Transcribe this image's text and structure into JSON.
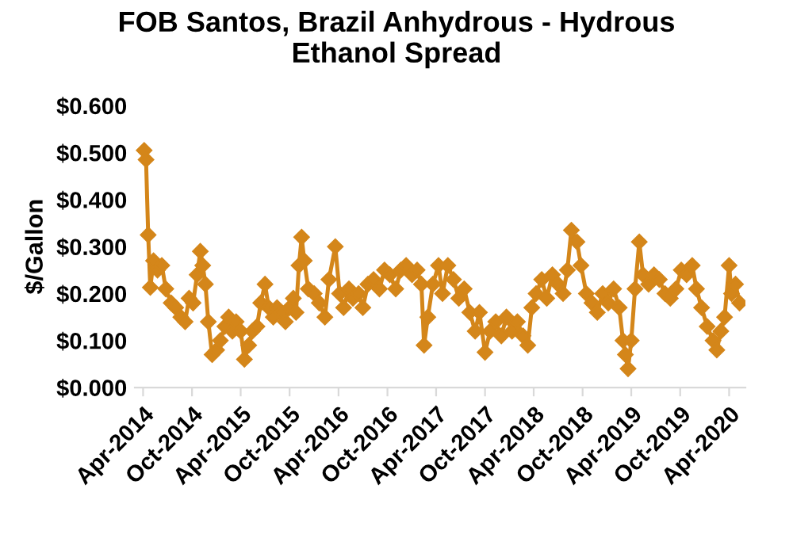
{
  "chart_data": {
    "type": "line",
    "title": "FOB Santos, Brazil Anhydrous - Hydrous\nEthanol Spread",
    "ylabel": "$/Gallon",
    "x": [
      "2014-04-05",
      "2014-04-12",
      "2014-04-20",
      "2014-04-28",
      "2014-05-10",
      "2014-05-25",
      "2014-06-10",
      "2014-06-25",
      "2014-07-15",
      "2014-08-01",
      "2014-08-20",
      "2014-09-05",
      "2014-09-20",
      "2014-10-05",
      "2014-10-20",
      "2014-11-01",
      "2014-11-10",
      "2014-11-20",
      "2014-12-01",
      "2014-12-15",
      "2015-01-01",
      "2015-01-15",
      "2015-02-01",
      "2015-02-15",
      "2015-03-01",
      "2015-03-15",
      "2015-04-01",
      "2015-04-15",
      "2015-05-01",
      "2015-05-15",
      "2015-06-01",
      "2015-06-15",
      "2015-07-01",
      "2015-07-15",
      "2015-08-01",
      "2015-08-15",
      "2015-09-01",
      "2015-09-15",
      "2015-10-01",
      "2015-10-15",
      "2015-10-25",
      "2015-11-05",
      "2015-11-15",
      "2015-11-25",
      "2015-12-10",
      "2016-01-01",
      "2016-01-20",
      "2016-02-10",
      "2016-02-25",
      "2016-03-20",
      "2016-04-05",
      "2016-04-20",
      "2016-05-10",
      "2016-05-25",
      "2016-06-15",
      "2016-07-01",
      "2016-07-20",
      "2016-08-10",
      "2016-09-01",
      "2016-09-20",
      "2016-10-10",
      "2016-11-01",
      "2016-11-20",
      "2016-12-10",
      "2017-01-01",
      "2017-01-20",
      "2017-02-05",
      "2017-02-15",
      "2017-03-01",
      "2017-03-20",
      "2017-04-10",
      "2017-04-25",
      "2017-05-15",
      "2017-06-05",
      "2017-06-25",
      "2017-07-15",
      "2017-08-05",
      "2017-08-25",
      "2017-09-10",
      "2017-10-01",
      "2017-10-20",
      "2017-11-10",
      "2017-12-01",
      "2017-12-20",
      "2018-01-10",
      "2018-01-30",
      "2018-02-20",
      "2018-03-10",
      "2018-03-25",
      "2018-04-10",
      "2018-05-01",
      "2018-05-20",
      "2018-06-10",
      "2018-07-01",
      "2018-07-20",
      "2018-08-05",
      "2018-08-20",
      "2018-09-10",
      "2018-09-25",
      "2018-10-15",
      "2018-11-05",
      "2018-11-25",
      "2018-12-15",
      "2019-01-05",
      "2019-01-25",
      "2019-02-15",
      "2019-03-01",
      "2019-03-10",
      "2019-03-20",
      "2019-04-01",
      "2019-04-15",
      "2019-05-01",
      "2019-05-15",
      "2019-06-05",
      "2019-06-25",
      "2019-07-15",
      "2019-08-05",
      "2019-08-25",
      "2019-09-15",
      "2019-10-05",
      "2019-10-25",
      "2019-11-15",
      "2019-12-01",
      "2019-12-20",
      "2020-01-10",
      "2020-02-01",
      "2020-02-15",
      "2020-03-01",
      "2020-03-15",
      "2020-04-01",
      "2020-04-10",
      "2020-04-25",
      "2020-05-10"
    ],
    "series": [
      {
        "color": "#d4861a",
        "values": [
          0.505,
          0.485,
          0.325,
          0.213,
          0.27,
          0.25,
          0.26,
          0.21,
          0.18,
          0.17,
          0.15,
          0.14,
          0.19,
          0.18,
          0.24,
          0.29,
          0.26,
          0.22,
          0.14,
          0.07,
          0.08,
          0.1,
          0.13,
          0.15,
          0.12,
          0.14,
          0.12,
          0.06,
          0.09,
          0.12,
          0.13,
          0.18,
          0.22,
          0.17,
          0.15,
          0.17,
          0.16,
          0.14,
          0.17,
          0.19,
          0.16,
          0.26,
          0.32,
          0.27,
          0.21,
          0.2,
          0.18,
          0.15,
          0.23,
          0.3,
          0.2,
          0.17,
          0.21,
          0.19,
          0.2,
          0.17,
          0.22,
          0.23,
          0.21,
          0.25,
          0.24,
          0.21,
          0.25,
          0.26,
          0.24,
          0.25,
          0.22,
          0.09,
          0.15,
          0.22,
          0.26,
          0.2,
          0.26,
          0.23,
          0.19,
          0.21,
          0.16,
          0.12,
          0.16,
          0.075,
          0.12,
          0.14,
          0.11,
          0.15,
          0.12,
          0.14,
          0.11,
          0.09,
          0.17,
          0.2,
          0.23,
          0.19,
          0.24,
          0.22,
          0.2,
          0.25,
          0.335,
          0.31,
          0.26,
          0.2,
          0.18,
          0.16,
          0.2,
          0.18,
          0.21,
          0.17,
          0.1,
          0.07,
          0.04,
          0.1,
          0.21,
          0.31,
          0.24,
          0.22,
          0.24,
          0.23,
          0.2,
          0.19,
          0.21,
          0.25,
          0.24,
          0.26,
          0.21,
          0.17,
          0.13,
          0.1,
          0.08,
          0.12,
          0.15,
          0.26,
          0.2,
          0.22,
          0.18
        ]
      }
    ],
    "marker": "diamond",
    "line_style": "solid",
    "grid": false,
    "legend": false,
    "xlim": [
      "2014-03-01",
      "2020-06-01"
    ],
    "xticks": [
      {
        "value": "2014-04-01",
        "label": "Apr-2014"
      },
      {
        "value": "2014-10-01",
        "label": "Oct-2014"
      },
      {
        "value": "2015-04-01",
        "label": "Apr-2015"
      },
      {
        "value": "2015-10-01",
        "label": "Oct-2015"
      },
      {
        "value": "2016-04-01",
        "label": "Apr-2016"
      },
      {
        "value": "2016-10-01",
        "label": "Oct-2016"
      },
      {
        "value": "2017-04-01",
        "label": "Apr-2017"
      },
      {
        "value": "2017-10-01",
        "label": "Oct-2017"
      },
      {
        "value": "2018-04-01",
        "label": "Apr-2018"
      },
      {
        "value": "2018-10-01",
        "label": "Oct-2018"
      },
      {
        "value": "2019-04-01",
        "label": "Apr-2019"
      },
      {
        "value": "2019-10-01",
        "label": "Oct-2019"
      },
      {
        "value": "2020-04-01",
        "label": "Apr-2020"
      }
    ],
    "ylim": [
      0,
      0.6
    ],
    "yticks": [
      {
        "value": 0,
        "label": "$0.000"
      },
      {
        "value": 0.1,
        "label": "$0.100"
      },
      {
        "value": 0.2,
        "label": "$0.200"
      },
      {
        "value": 0.3,
        "label": "$0.300"
      },
      {
        "value": 0.4,
        "label": "$0.400"
      },
      {
        "value": 0.5,
        "label": "$0.500"
      },
      {
        "value": 0.6,
        "label": "$0.600"
      }
    ]
  }
}
